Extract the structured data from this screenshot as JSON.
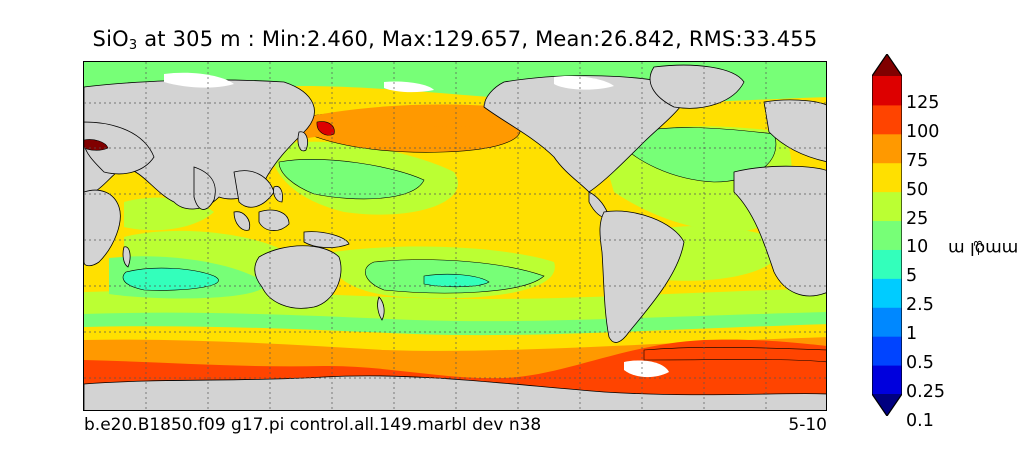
{
  "title": {
    "variable": "SiO",
    "subscript": "3",
    "rest": " at 305 m : Min:2.460, Max:129.657, Mean:26.842, RMS:33.455"
  },
  "footer": {
    "case_name": "b.e20.B1850.f09 g17.pi control.all.149.marbl dev n38",
    "years": "5-10"
  },
  "colorbar": {
    "unit_base": "mmol m",
    "unit_exponent": "−3",
    "labels": [
      "125",
      "100",
      "75",
      "50",
      "25",
      "10",
      "5",
      "2.5",
      "1",
      "0.5",
      "0.25",
      "0.1"
    ],
    "colors": [
      "#000080",
      "#0000dd",
      "#0044ff",
      "#0088ff",
      "#00ccff",
      "#33ffbb",
      "#77ff77",
      "#bbff33",
      "#ffe000",
      "#ff9900",
      "#ff4400",
      "#dd0000",
      "#800000"
    ]
  },
  "map": {
    "land_color": "#d3d3d3",
    "levels": {
      "high": "#ff4400",
      "upper": "#ff9900",
      "mid": "#ffe000",
      "lower": "#bbff33",
      "low": "#77ff77",
      "lowest": "#33ffbb",
      "max": "#dd0000"
    }
  }
}
